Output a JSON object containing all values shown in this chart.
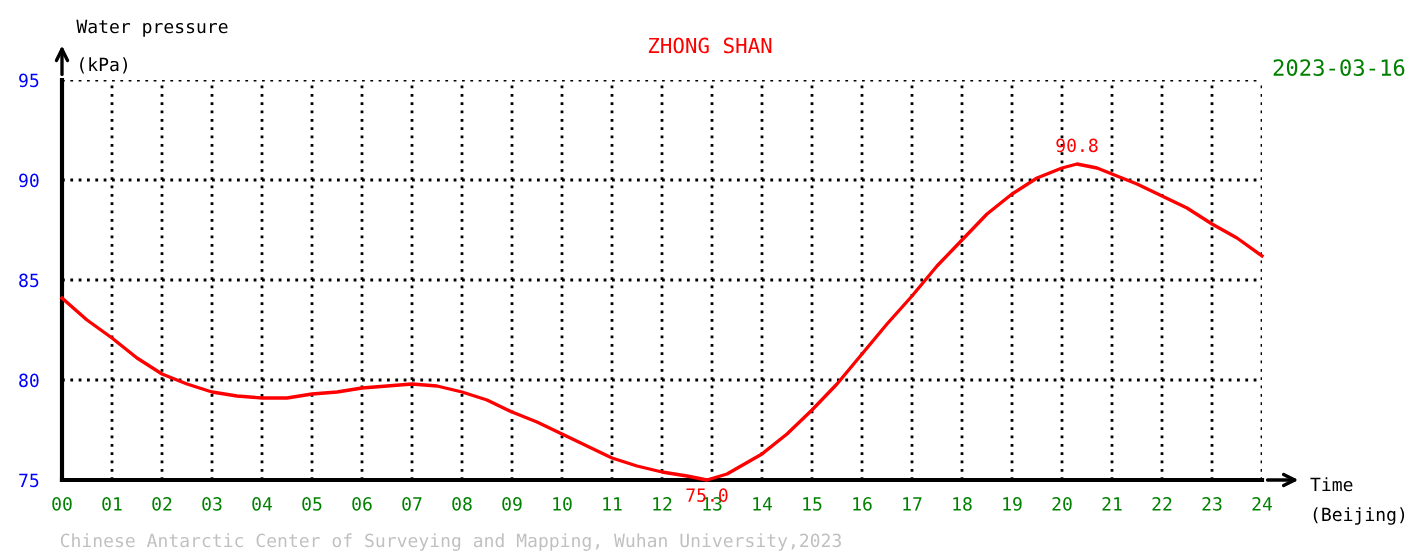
{
  "chart_data": {
    "type": "line",
    "title": "ZHONG SHAN",
    "subtitle": "2023-03-16",
    "xlabel": "Time\n(Beijing)",
    "ylabel": "Water pressure\n(kPa)",
    "x": [
      0,
      0.5,
      1,
      1.5,
      2,
      2.5,
      3,
      3.5,
      4,
      4.5,
      5,
      5.5,
      6,
      6.5,
      7,
      7.5,
      8,
      8.5,
      9,
      9.5,
      10,
      10.5,
      11,
      11.5,
      12,
      12.5,
      12.9,
      13.3,
      14,
      14.5,
      15,
      15.5,
      16,
      16.5,
      17,
      17.5,
      18,
      18.5,
      19,
      19.5,
      20,
      20.3,
      20.7,
      21,
      21.5,
      22,
      22.5,
      23,
      23.5,
      24
    ],
    "series": [
      {
        "color": "#ff0000",
        "values": [
          84.1,
          83.0,
          82.1,
          81.1,
          80.3,
          79.8,
          79.4,
          79.2,
          79.1,
          79.1,
          79.3,
          79.4,
          79.6,
          79.7,
          79.8,
          79.7,
          79.4,
          79.0,
          78.4,
          77.9,
          77.3,
          76.7,
          76.1,
          75.7,
          75.4,
          75.2,
          75.0,
          75.3,
          76.3,
          77.3,
          78.5,
          79.8,
          81.3,
          82.8,
          84.2,
          85.7,
          87.0,
          88.3,
          89.3,
          90.1,
          90.6,
          90.8,
          90.6,
          90.3,
          89.8,
          89.2,
          88.6,
          87.8,
          87.1,
          86.2
        ]
      }
    ],
    "annotations": [
      {
        "text": "90.8",
        "x": 20.3,
        "y": 90.8
      },
      {
        "text": "75.0",
        "x": 12.9,
        "y": 75.0
      },
      "Chinese Antarctic Center of Surveying and Mapping, Wuhan University,2023"
    ],
    "xlim": [
      0,
      24
    ],
    "ylim": [
      75,
      95
    ],
    "xticks": [
      {
        "value": 0,
        "label": "00"
      },
      {
        "value": 1,
        "label": "01"
      },
      {
        "value": 2,
        "label": "02"
      },
      {
        "value": 3,
        "label": "03"
      },
      {
        "value": 4,
        "label": "04"
      },
      {
        "value": 5,
        "label": "05"
      },
      {
        "value": 6,
        "label": "06"
      },
      {
        "value": 7,
        "label": "07"
      },
      {
        "value": 8,
        "label": "08"
      },
      {
        "value": 9,
        "label": "09"
      },
      {
        "value": 10,
        "label": "10"
      },
      {
        "value": 11,
        "label": "11"
      },
      {
        "value": 12,
        "label": "12"
      },
      {
        "value": 13,
        "label": "13"
      },
      {
        "value": 14,
        "label": "14"
      },
      {
        "value": 15,
        "label": "15"
      },
      {
        "value": 16,
        "label": "16"
      },
      {
        "value": 17,
        "label": "17"
      },
      {
        "value": 18,
        "label": "18"
      },
      {
        "value": 19,
        "label": "19"
      },
      {
        "value": 20,
        "label": "20"
      },
      {
        "value": 21,
        "label": "21"
      },
      {
        "value": 22,
        "label": "22"
      },
      {
        "value": 23,
        "label": "23"
      },
      {
        "value": 24,
        "label": "24"
      }
    ],
    "yticks": [
      75,
      80,
      85,
      90,
      95
    ],
    "grid": true,
    "line_style": "solid",
    "marker": "none"
  }
}
